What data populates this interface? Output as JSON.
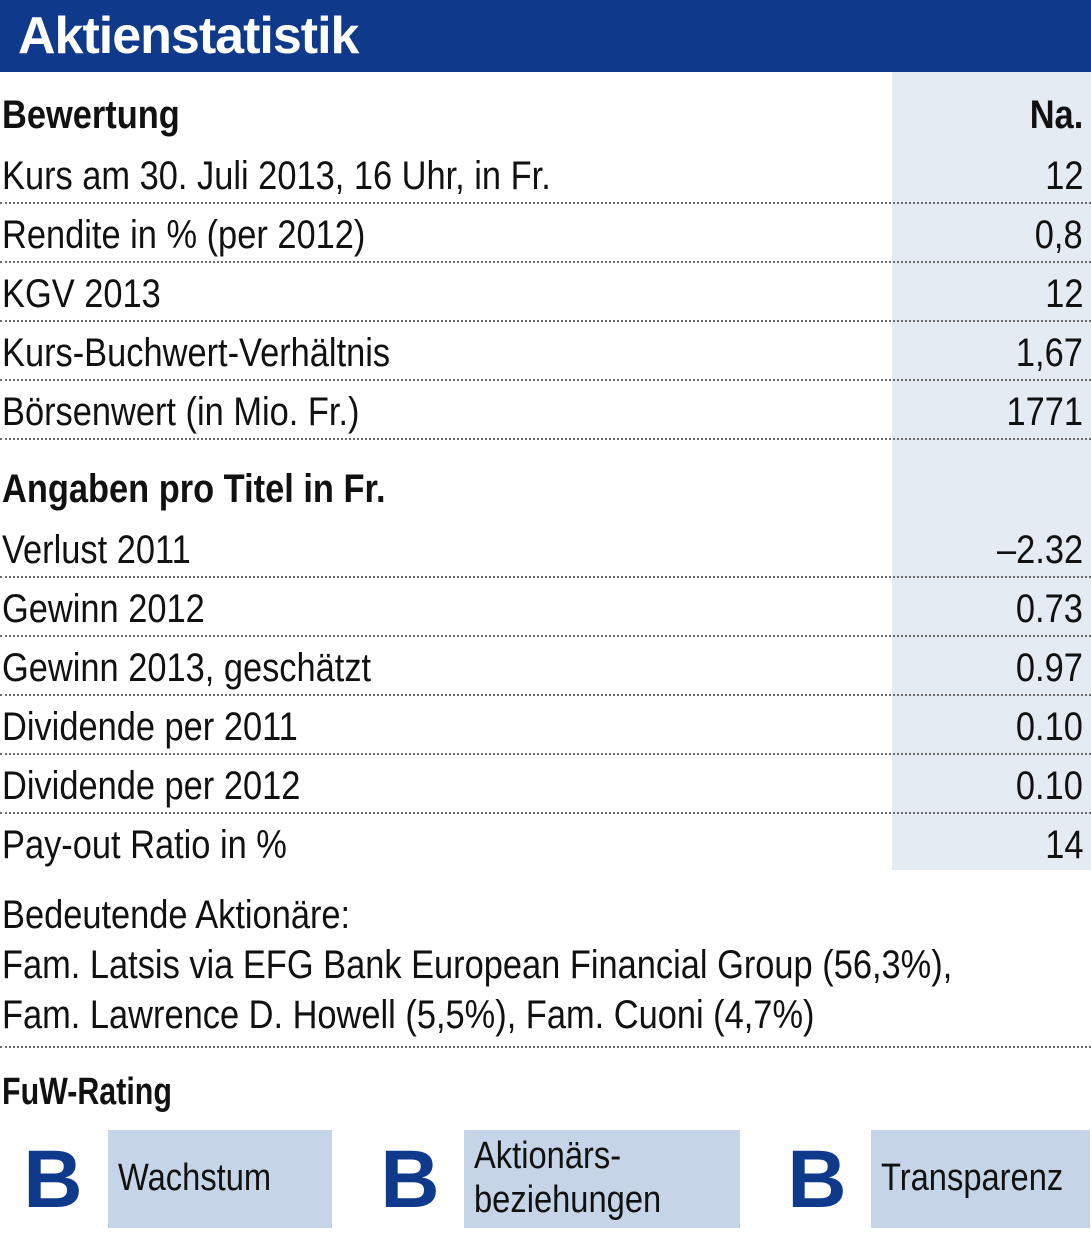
{
  "title": "Aktienstatistik",
  "colors": {
    "brand": "#0f3a8c",
    "value_column_shade": "#e4ebf3",
    "rating_box": "#c5d4e6"
  },
  "valuation": {
    "header": "Bewertung",
    "header_value": "Na.",
    "rows": [
      {
        "label": "Kurs am 30. Juli 2013, 16 Uhr, in Fr.",
        "value": "12"
      },
      {
        "label": "Rendite in % (per 2012)",
        "value": "0,8"
      },
      {
        "label": "KGV 2013",
        "value": "12"
      },
      {
        "label": "Kurs-Buchwert-Verhältnis",
        "value": "1,67"
      },
      {
        "label": "Börsenwert (in Mio. Fr.)",
        "value": "1771"
      }
    ]
  },
  "per_share": {
    "header": "Angaben pro Titel in Fr.",
    "rows": [
      {
        "label": "Verlust 2011",
        "value": "–2.32"
      },
      {
        "label": "Gewinn 2012",
        "value": "0.73"
      },
      {
        "label": "Gewinn 2013, geschätzt",
        "value": "0.97"
      },
      {
        "label": "Dividende per 2011",
        "value": "0.10"
      },
      {
        "label": "Dividende per 2012",
        "value": "0.10"
      },
      {
        "label": "Pay-out Ratio in %",
        "value": "14"
      }
    ]
  },
  "shareholders": {
    "heading": "Bedeutende Aktionäre:",
    "line1": "Fam. Latsis via EFG Bank European Financial Group (56,3%),",
    "line2": "Fam. Lawrence D. Howell (5,5%), Fam. Cuoni (4,7%)"
  },
  "rating": {
    "title": "FuW-Rating",
    "items": [
      {
        "grade": "B",
        "label_line1": "Wachstum",
        "label_line2": ""
      },
      {
        "grade": "B",
        "label_line1": "Aktionärs-",
        "label_line2": "beziehungen"
      },
      {
        "grade": "B",
        "label_line1": "Transparenz",
        "label_line2": ""
      }
    ]
  }
}
